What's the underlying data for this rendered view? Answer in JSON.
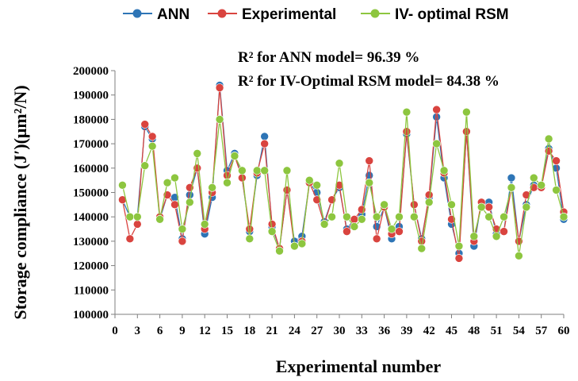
{
  "chart_data": {
    "type": "line",
    "xlabel": "Experimental number",
    "ylabel": "Storage compliance (J′)(μm²/N)",
    "xlim": [
      0,
      60
    ],
    "ylim": [
      100000,
      200000
    ],
    "x_ticks": [
      "0",
      "3",
      "6",
      "9",
      "12",
      "15",
      "18",
      "21",
      "24",
      "27",
      "30",
      "33",
      "36",
      "39",
      "42",
      "45",
      "48",
      "51",
      "54",
      "57",
      "60"
    ],
    "y_ticks": [
      "100000",
      "110000",
      "120000",
      "130000",
      "140000",
      "150000",
      "160000",
      "170000",
      "180000",
      "190000",
      "200000"
    ],
    "legend_position": "top",
    "grid": false,
    "annotations": [
      "R² for ANN model= 96.39 %",
      "R² for IV-Optimal RSM model= 84.38 %"
    ],
    "x": [
      1,
      2,
      3,
      4,
      5,
      6,
      7,
      8,
      9,
      10,
      11,
      12,
      13,
      14,
      15,
      16,
      17,
      18,
      19,
      20,
      21,
      22,
      23,
      24,
      25,
      26,
      27,
      28,
      29,
      30,
      31,
      32,
      33,
      34,
      35,
      36,
      37,
      38,
      39,
      40,
      41,
      42,
      43,
      44,
      45,
      46,
      47,
      48,
      49,
      50,
      51,
      52,
      53,
      54,
      55,
      56,
      57,
      58,
      59,
      60
    ],
    "series": [
      {
        "name": "ANN",
        "color": "#2e75b6",
        "values": [
          147000,
          140000,
          140000,
          177000,
          172000,
          139000,
          149000,
          148000,
          131000,
          149000,
          160000,
          133000,
          148000,
          194000,
          159000,
          166000,
          156000,
          134000,
          157000,
          173000,
          136000,
          127000,
          151000,
          130000,
          132000,
          154000,
          150000,
          138000,
          147000,
          152000,
          135000,
          139000,
          141000,
          157000,
          136000,
          144000,
          131000,
          136000,
          174000,
          145000,
          131000,
          148000,
          181000,
          156000,
          137000,
          125000,
          175000,
          128000,
          146000,
          146000,
          133000,
          134000,
          156000,
          130000,
          145000,
          153000,
          153000,
          168000,
          160000,
          139000
        ]
      },
      {
        "name": "Experimental",
        "color": "#d9443f",
        "values": [
          147000,
          131000,
          137000,
          178000,
          173000,
          140000,
          149000,
          145000,
          130000,
          152000,
          160000,
          135000,
          150000,
          193000,
          157000,
          165000,
          156000,
          135000,
          158000,
          170000,
          137000,
          127000,
          151000,
          128000,
          130000,
          154000,
          147000,
          137000,
          147000,
          153000,
          134000,
          139000,
          143000,
          163000,
          131000,
          144000,
          133000,
          134000,
          175000,
          145000,
          130000,
          149000,
          184000,
          158000,
          139000,
          123000,
          175000,
          130000,
          146000,
          144000,
          135000,
          134000,
          152000,
          130000,
          149000,
          152000,
          152000,
          167000,
          163000,
          142000
        ]
      },
      {
        "name": "IV- optimal RSM",
        "color": "#8dc63f",
        "values": [
          153000,
          140000,
          140000,
          161000,
          169000,
          139000,
          154000,
          156000,
          135000,
          146000,
          166000,
          137000,
          152000,
          180000,
          154000,
          165000,
          159000,
          131000,
          159000,
          159000,
          134000,
          126000,
          159000,
          128000,
          129000,
          155000,
          153000,
          137000,
          140000,
          162000,
          140000,
          136000,
          139000,
          154000,
          140000,
          145000,
          135000,
          140000,
          183000,
          140000,
          127000,
          146000,
          170000,
          159000,
          145000,
          128000,
          183000,
          132000,
          144000,
          140000,
          132000,
          140000,
          152000,
          124000,
          144000,
          156000,
          153000,
          172000,
          151000,
          140000
        ]
      }
    ]
  }
}
